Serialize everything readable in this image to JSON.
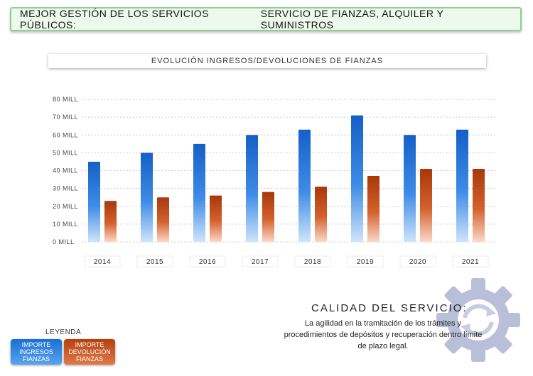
{
  "banner": {
    "left": "MEJOR GESTIÓN DE LOS SERVICIOS PÚBLICOS:",
    "right": "SERVICIO DE FIANZAS, ALQUILER Y SUMINISTROS"
  },
  "chart_data": {
    "type": "bar",
    "title": "EVOLUCIÓN INGRESOS/DEVOLUCIONES DE FIANZAS",
    "categories": [
      "2014",
      "2015",
      "2016",
      "2017",
      "2018",
      "2019",
      "2020",
      "2021"
    ],
    "series": [
      {
        "name": "IMPORTE INGRESOS FIANZAS",
        "values": [
          45,
          50,
          55,
          60,
          63,
          71,
          60,
          63
        ]
      },
      {
        "name": "IMPORTE DEVOLUCIÓN FIANZAS",
        "values": [
          23,
          25,
          26,
          28,
          31,
          37,
          41,
          41
        ]
      }
    ],
    "yticks": [
      "0 MILL",
      "10 MILL",
      "20 MILL",
      "30 MILL",
      "40 MILL",
      "50 MILL",
      "60 MILL",
      "70 MILL",
      "80 MILL"
    ],
    "ylim": [
      0,
      80
    ],
    "grid": true,
    "legend": "bottom-left",
    "colors": {
      "ingresos": "#1a6fd6",
      "devolucion": "#b5400c"
    }
  },
  "calidad": {
    "title": "CALIDAD DEL SERVICIO:",
    "text": "La agilidad en la tramitación de los trámites y procedimientos de depósitos y recuperación dentro límite de plazo legal."
  },
  "legend": {
    "title": "LEYENDA",
    "item1": "IMPORTE INGRESOS FIANZAS",
    "item2": "IMPORTE DEVOLUCIÓN FIANZAS"
  },
  "icons": {
    "gear": "gear-refresh-icon"
  }
}
